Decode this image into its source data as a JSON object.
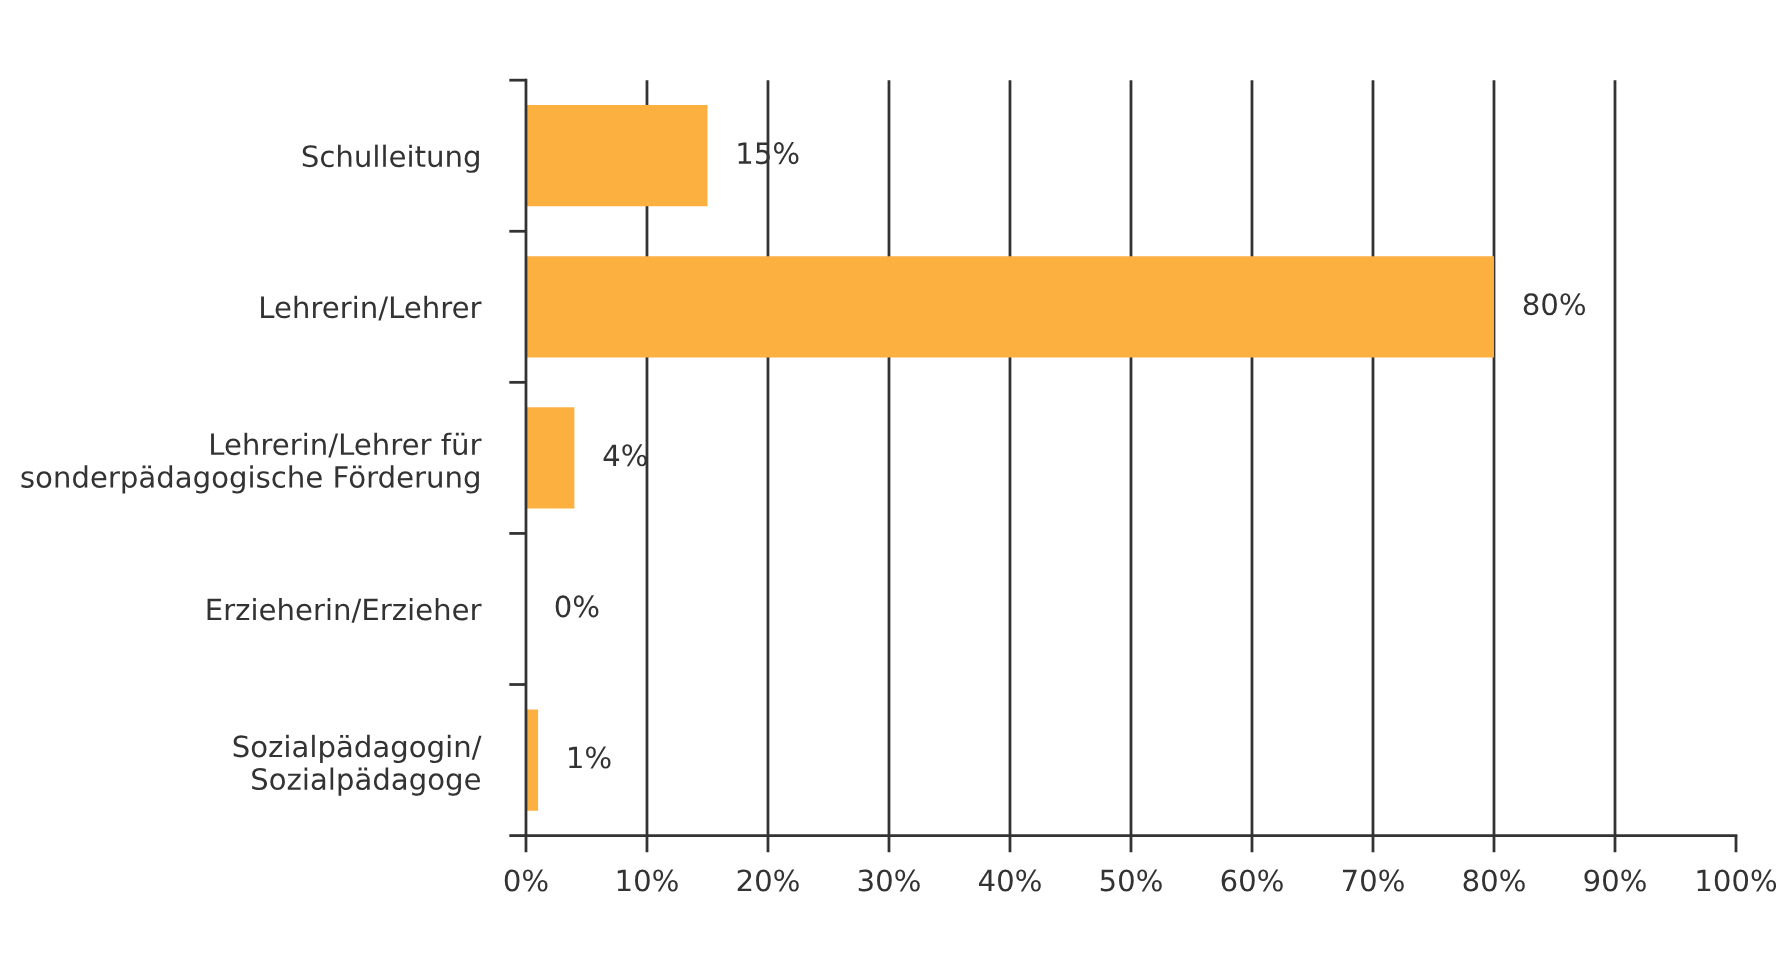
{
  "chart_data": {
    "type": "bar",
    "orientation": "horizontal",
    "categories": [
      "Schulleitung",
      "Lehrerin/Lehrer",
      "Lehrerin/Lehrer für\nsonderpädagogische Förderung",
      "Erzieherin/Erzieher",
      "Sozialpädagogin/\nSozialpädagoge"
    ],
    "values": [
      15,
      80,
      4,
      0,
      1
    ],
    "color": "#fbb040",
    "value_labels": [
      "15%",
      "80%",
      "4%",
      "0%",
      "1%"
    ],
    "xlim": [
      0,
      100
    ],
    "xticks": [
      {
        "value": 0,
        "label": "0%"
      },
      {
        "value": 10,
        "label": "10%"
      },
      {
        "value": 20,
        "label": "20%"
      },
      {
        "value": 30,
        "label": "30%"
      },
      {
        "value": 40,
        "label": "40%"
      },
      {
        "value": 50,
        "label": "50%"
      },
      {
        "value": 60,
        "label": "60%"
      },
      {
        "value": 70,
        "label": "70%"
      },
      {
        "value": 80,
        "label": "80%"
      },
      {
        "value": 90,
        "label": "90%"
      },
      {
        "value": 100,
        "label": "100%"
      }
    ],
    "grid": "x",
    "legend": false
  }
}
